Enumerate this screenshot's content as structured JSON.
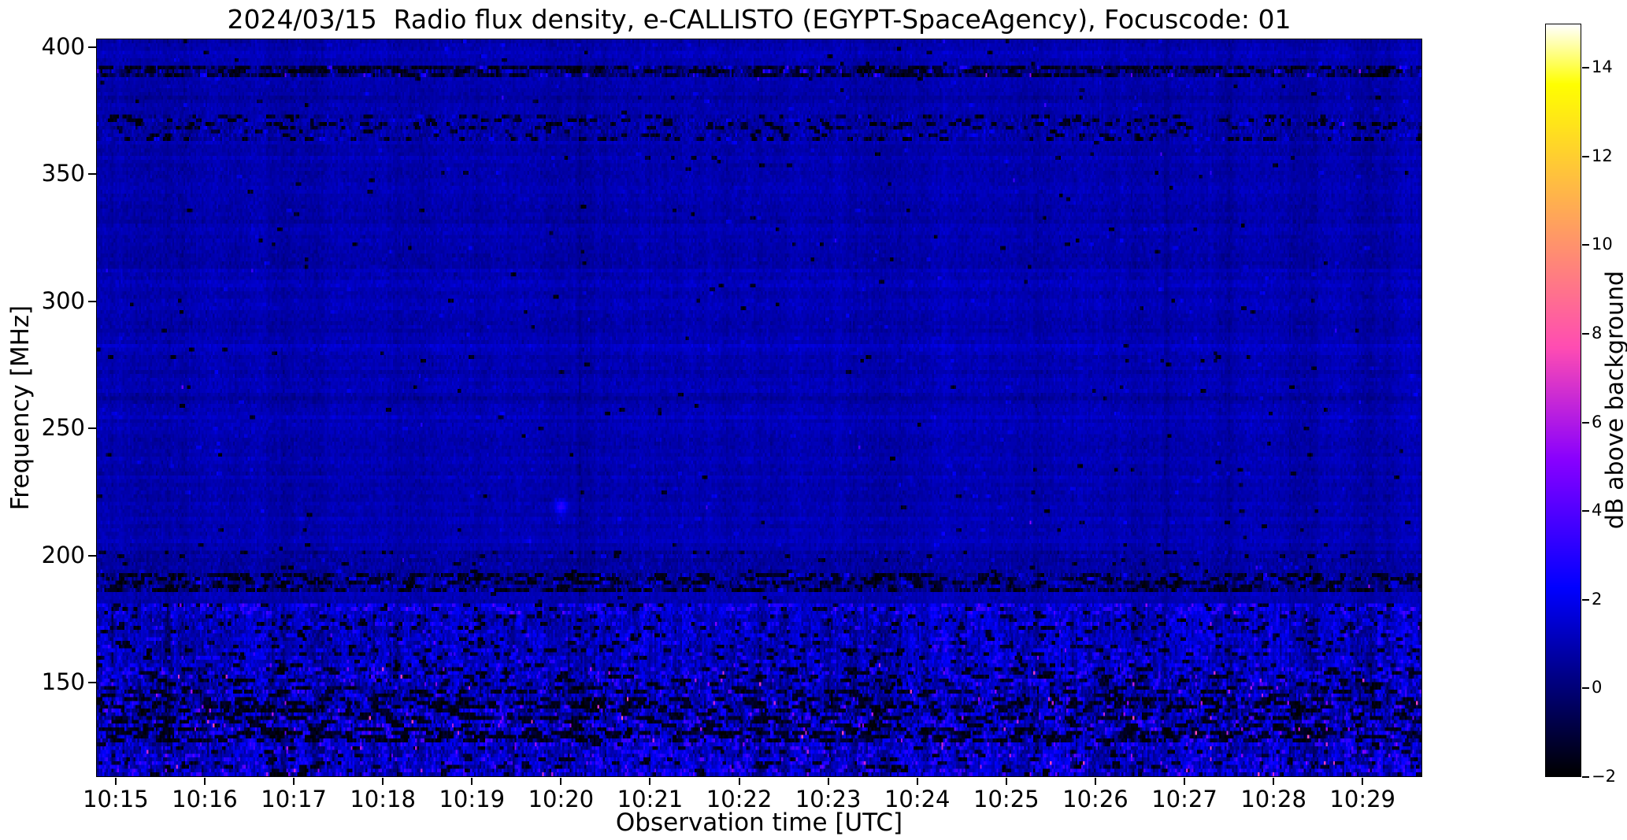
{
  "chart_data": {
    "type": "heatmap",
    "title": "2024/03/15  Radio flux density, e-CALLISTO (EGYPT-SpaceAgency), Focuscode: 01",
    "xlabel": "Observation time [UTC]",
    "ylabel": "Frequency [MHz]",
    "colorbar_label": "dB above background",
    "colormap": "gnuplot2",
    "grid_on": false,
    "xlim_minutes_utc": [
      614.78,
      629.67
    ],
    "x_ticks": [
      {
        "minute": 615,
        "label": "10:15"
      },
      {
        "minute": 616,
        "label": "10:16"
      },
      {
        "minute": 617,
        "label": "10:17"
      },
      {
        "minute": 618,
        "label": "10:18"
      },
      {
        "minute": 619,
        "label": "10:19"
      },
      {
        "minute": 620,
        "label": "10:20"
      },
      {
        "minute": 621,
        "label": "10:21"
      },
      {
        "minute": 622,
        "label": "10:22"
      },
      {
        "minute": 623,
        "label": "10:23"
      },
      {
        "minute": 624,
        "label": "10:24"
      },
      {
        "minute": 625,
        "label": "10:25"
      },
      {
        "minute": 626,
        "label": "10:26"
      },
      {
        "minute": 627,
        "label": "10:27"
      },
      {
        "minute": 628,
        "label": "10:28"
      },
      {
        "minute": 629,
        "label": "10:29"
      }
    ],
    "ylim_mhz": [
      113.0,
      403.3
    ],
    "y_ticks": [
      {
        "value": 150,
        "label": "150"
      },
      {
        "value": 200,
        "label": "200"
      },
      {
        "value": 250,
        "label": "250"
      },
      {
        "value": 300,
        "label": "300"
      },
      {
        "value": 350,
        "label": "350"
      },
      {
        "value": 400,
        "label": "400"
      }
    ],
    "clim_db": [
      -2,
      15
    ],
    "colorbar_ticks": [
      {
        "value": -2,
        "label": "−2"
      },
      {
        "value": 0,
        "label": "0"
      },
      {
        "value": 2,
        "label": "2"
      },
      {
        "value": 4,
        "label": "4"
      },
      {
        "value": 6,
        "label": "6"
      },
      {
        "value": 8,
        "label": "8"
      },
      {
        "value": 10,
        "label": "10"
      },
      {
        "value": 12,
        "label": "12"
      },
      {
        "value": 14,
        "label": "14"
      }
    ],
    "grid": {
      "cols": 720,
      "rows": 196
    },
    "default_band": {
      "mean": 0.9,
      "std": 0.2,
      "dark_start": 0.002,
      "dark_len": 2,
      "bright_start": 0.002,
      "bright_len": 2,
      "bright_val": 1.7,
      "bright_std": 0.3,
      "hot_p": 0.0004,
      "hot_val": 2.6,
      "stripe": 0.05
    },
    "bands": [
      {
        "name": "rfi-row-390",
        "f_lo": 388.5,
        "f_hi": 392.5,
        "mean": 0.25,
        "std": 0.7,
        "dark_start": 0.12,
        "dark_len": 8,
        "bright_start": 0.03,
        "bright_len": 3,
        "bright_val": 2.2,
        "bright_std": 0.8,
        "hot_p": 0.004,
        "hot_val": 4.5,
        "stripe": 0.05
      },
      {
        "name": "speckle-row-368",
        "f_lo": 363.0,
        "f_hi": 373.5,
        "mean": 0.72,
        "std": 0.42,
        "dark_start": 0.05,
        "dark_len": 4,
        "bright_start": 0.012,
        "bright_len": 2,
        "bright_val": 1.9,
        "bright_std": 0.4,
        "hot_p": 0.001,
        "hot_val": 3.2,
        "stripe": 0.08
      },
      {
        "name": "rfi-band-190",
        "f_lo": 186.0,
        "f_hi": 193.5,
        "mean": 0.5,
        "std": 0.55,
        "dark_start": 0.1,
        "dark_len": 6,
        "bright_start": 0.02,
        "bright_len": 2,
        "bright_val": 1.9,
        "bright_std": 0.5,
        "hot_p": 0.002,
        "hot_val": 3.4,
        "stripe": 0.08
      },
      {
        "name": "quiet-band-197",
        "f_lo": 193.5,
        "f_hi": 202.0,
        "mean": 0.72,
        "std": 0.3,
        "dark_start": 0.012,
        "dark_len": 3,
        "bright_start": 0.004,
        "bright_len": 2,
        "bright_val": 1.7,
        "bright_std": 0.3,
        "hot_p": 0.0006,
        "hot_val": 2.6,
        "stripe": 0.05
      },
      {
        "name": "bright-band-178",
        "f_lo": 176.0,
        "f_hi": 181.0,
        "mean": 1.25,
        "std": 0.55,
        "dark_start": 0.02,
        "dark_len": 3,
        "bright_start": 0.07,
        "bright_len": 4,
        "bright_val": 2.7,
        "bright_std": 0.6,
        "hot_p": 0.004,
        "hot_val": 4.0,
        "stripe": 0.25
      },
      {
        "name": "striated-band-165",
        "f_lo": 156.0,
        "f_hi": 176.0,
        "mean": 1.0,
        "std": 0.5,
        "dark_start": 0.035,
        "dark_len": 3,
        "bright_start": 0.035,
        "bright_len": 3,
        "bright_val": 2.3,
        "bright_std": 0.5,
        "hot_p": 0.003,
        "hot_val": 3.6,
        "stripe": 0.35
      },
      {
        "name": "rfi-band-152",
        "f_lo": 148.0,
        "f_hi": 156.0,
        "mean": 0.9,
        "std": 0.7,
        "dark_start": 0.06,
        "dark_len": 5,
        "bright_start": 0.05,
        "bright_len": 3,
        "bright_val": 2.5,
        "bright_std": 0.7,
        "hot_p": 0.007,
        "hot_val": 6.0,
        "stripe": 0.3
      },
      {
        "name": "rfi-band-142",
        "f_lo": 136.0,
        "f_hi": 148.0,
        "mean": 0.8,
        "std": 0.8,
        "dark_start": 0.09,
        "dark_len": 7,
        "bright_start": 0.05,
        "bright_len": 3,
        "bright_val": 2.5,
        "bright_std": 0.8,
        "hot_p": 0.006,
        "hot_val": 5.5,
        "stripe": 0.3
      },
      {
        "name": "rfi-band-130",
        "f_lo": 126.0,
        "f_hi": 136.0,
        "mean": 0.8,
        "std": 0.9,
        "dark_start": 0.11,
        "dark_len": 8,
        "bright_start": 0.05,
        "bright_len": 3,
        "bright_val": 2.7,
        "bright_std": 0.8,
        "hot_p": 0.007,
        "hot_val": 6.2,
        "stripe": 0.3
      },
      {
        "name": "dense-band-118",
        "f_lo": 113.0,
        "f_hi": 126.0,
        "mean": 1.15,
        "std": 0.65,
        "dark_start": 0.05,
        "dark_len": 4,
        "bright_start": 0.08,
        "bright_len": 3,
        "bright_val": 2.7,
        "bright_std": 0.7,
        "hot_p": 0.009,
        "hot_val": 5.2,
        "stripe": 0.45
      }
    ],
    "features": {
      "seed": 20240315,
      "dark_columns_minutes": [
        620.2,
        626.8,
        627.5
      ],
      "dark_column_depth_db": [
        0.5,
        0.55,
        0.3
      ],
      "bright_blob": {
        "t_minute": 620.0,
        "f_mhz": 219,
        "amp_db": 2.3,
        "sigma_t_min": 0.05,
        "sigma_f_mhz": 2.2
      },
      "faint_bright_rows_mhz": [
        250.5,
        255.5,
        281.5,
        312.5
      ],
      "faint_row_delta_db": 0.22,
      "late_boost": {
        "f_lo": 156,
        "f_hi": 178,
        "t_start_minute": 624.0,
        "delta_db": 0.16
      }
    }
  }
}
